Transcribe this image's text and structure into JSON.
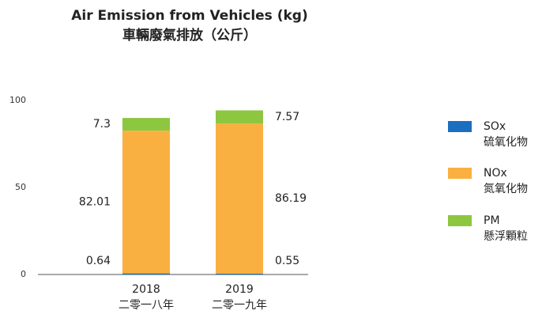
{
  "chart_data": {
    "type": "stacked_bar",
    "title": "Air Emission from Vehicles (kg)",
    "subtitle": "車輛廢氣排放（公斤）",
    "categories": [
      "2018\n二零一八年",
      "2019\n二零一九年"
    ],
    "series": [
      {
        "name": "SOx\n硫氧化物",
        "color": "#1a6fc0",
        "values": [
          0.64,
          0.55
        ]
      },
      {
        "name": "NOx\n氮氧化物",
        "color": "#f9b040",
        "values": [
          82.01,
          86.19
        ]
      },
      {
        "name": "PM\n懸浮顆粒",
        "color": "#8dc63f",
        "values": [
          7.3,
          7.57
        ]
      }
    ],
    "ylim": [
      0,
      100
    ],
    "yticks": [
      0,
      50,
      100
    ],
    "grid": false
  }
}
